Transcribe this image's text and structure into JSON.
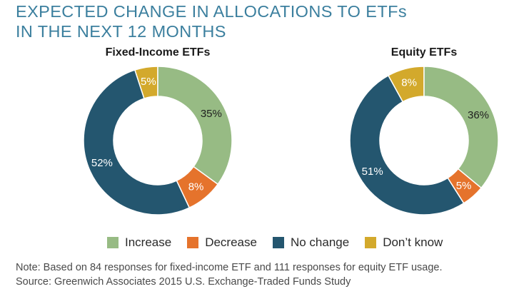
{
  "title_lines": [
    "EXPECTED CHANGE IN ALLOCATIONS TO ETFs",
    "IN THE NEXT 12 MONTHS"
  ],
  "colors": {
    "title": "#3b7f9e",
    "increase": "#97bb84",
    "decrease": "#e5732c",
    "no_change": "#24566f",
    "dont_know": "#d3a92c"
  },
  "legend": [
    {
      "label": "Increase",
      "color_key": "increase"
    },
    {
      "label": "Decrease",
      "color_key": "decrease"
    },
    {
      "label": "No change",
      "color_key": "no_change"
    },
    {
      "label": "Don’t know",
      "color_key": "dont_know"
    }
  ],
  "chart_data": [
    {
      "type": "pie",
      "title": "Fixed-Income ETFs",
      "start_angle_deg": 0,
      "slices": [
        {
          "label": "Increase",
          "value": 35,
          "display": "35%",
          "color_key": "increase"
        },
        {
          "label": "Decrease",
          "value": 8,
          "display": "8%",
          "color_key": "decrease"
        },
        {
          "label": "No change",
          "value": 52,
          "display": "52%",
          "color_key": "no_change"
        },
        {
          "label": "Don’t know",
          "value": 5,
          "display": "5%",
          "color_key": "dont_know"
        }
      ]
    },
    {
      "type": "pie",
      "title": "Equity ETFs",
      "start_angle_deg": 0,
      "slices": [
        {
          "label": "Increase",
          "value": 36,
          "display": "36%",
          "color_key": "increase"
        },
        {
          "label": "Decrease",
          "value": 5,
          "display": "5%",
          "color_key": "decrease"
        },
        {
          "label": "No change",
          "value": 51,
          "display": "51%",
          "color_key": "no_change"
        },
        {
          "label": "Don’t know",
          "value": 8,
          "display": "8%",
          "color_key": "dont_know"
        }
      ]
    }
  ],
  "notes": {
    "line1": "Note: Based on 84 responses for fixed-income ETF and 111 responses for equity ETF usage.",
    "line2": "Source: Greenwich Associates 2015 U.S. Exchange-Traded Funds Study"
  }
}
